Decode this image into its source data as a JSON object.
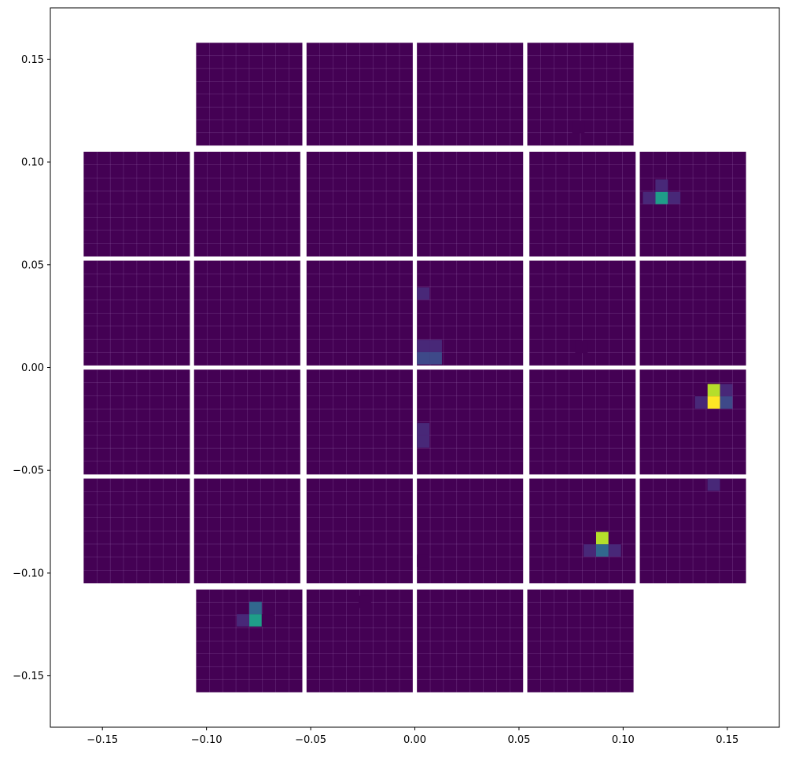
{
  "chart_data": {
    "type": "heatmap",
    "title": "",
    "xlabel": "",
    "ylabel": "",
    "xlim": [
      -0.175,
      0.175
    ],
    "ylim": [
      -0.175,
      0.175
    ],
    "xticks": [
      -0.15,
      -0.1,
      -0.05,
      0.0,
      0.05,
      0.1,
      0.15
    ],
    "xtick_labels": [
      "−0.15",
      "−0.10",
      "−0.05",
      "0.00",
      "0.05",
      "0.10",
      "0.15"
    ],
    "yticks": [
      -0.15,
      -0.1,
      -0.05,
      0.0,
      0.05,
      0.1,
      0.15
    ],
    "ytick_labels": [
      "−0.15",
      "−0.10",
      "−0.05",
      "0.00",
      "0.05",
      "0.10",
      "0.15"
    ],
    "grid": false,
    "colormap": "viridis",
    "value_range": [
      0,
      1
    ],
    "background_color": "#440154",
    "pixel_line_color": "#8a5aa0",
    "modules": [
      {
        "row": 0,
        "col": 1,
        "x0": -0.105,
        "x1": -0.054,
        "y0": 0.108,
        "y1": 0.158
      },
      {
        "row": 0,
        "col": 2,
        "x0": -0.052,
        "x1": -0.001,
        "y0": 0.108,
        "y1": 0.158
      },
      {
        "row": 0,
        "col": 3,
        "x0": 0.001,
        "x1": 0.052,
        "y0": 0.108,
        "y1": 0.158
      },
      {
        "row": 0,
        "col": 4,
        "x0": 0.054,
        "x1": 0.105,
        "y0": 0.108,
        "y1": 0.158
      },
      {
        "row": 1,
        "col": 0,
        "x0": -0.159,
        "x1": -0.108,
        "y0": 0.054,
        "y1": 0.105
      },
      {
        "row": 1,
        "col": 1,
        "x0": -0.106,
        "x1": -0.055,
        "y0": 0.054,
        "y1": 0.105
      },
      {
        "row": 1,
        "col": 2,
        "x0": -0.052,
        "x1": -0.001,
        "y0": 0.054,
        "y1": 0.105
      },
      {
        "row": 1,
        "col": 3,
        "x0": 0.001,
        "x1": 0.052,
        "y0": 0.054,
        "y1": 0.105
      },
      {
        "row": 1,
        "col": 4,
        "x0": 0.055,
        "x1": 0.106,
        "y0": 0.054,
        "y1": 0.105
      },
      {
        "row": 1,
        "col": 5,
        "x0": 0.108,
        "x1": 0.159,
        "y0": 0.054,
        "y1": 0.105
      },
      {
        "row": 2,
        "col": 0,
        "x0": -0.159,
        "x1": -0.108,
        "y0": 0.001,
        "y1": 0.052
      },
      {
        "row": 2,
        "col": 1,
        "x0": -0.106,
        "x1": -0.055,
        "y0": 0.001,
        "y1": 0.052
      },
      {
        "row": 2,
        "col": 2,
        "x0": -0.052,
        "x1": -0.001,
        "y0": 0.001,
        "y1": 0.052
      },
      {
        "row": 2,
        "col": 3,
        "x0": 0.001,
        "x1": 0.052,
        "y0": 0.001,
        "y1": 0.052
      },
      {
        "row": 2,
        "col": 4,
        "x0": 0.055,
        "x1": 0.106,
        "y0": 0.001,
        "y1": 0.052
      },
      {
        "row": 2,
        "col": 5,
        "x0": 0.108,
        "x1": 0.159,
        "y0": 0.001,
        "y1": 0.052
      },
      {
        "row": 3,
        "col": 0,
        "x0": -0.159,
        "x1": -0.108,
        "y0": -0.052,
        "y1": -0.001
      },
      {
        "row": 3,
        "col": 1,
        "x0": -0.106,
        "x1": -0.055,
        "y0": -0.052,
        "y1": -0.001
      },
      {
        "row": 3,
        "col": 2,
        "x0": -0.052,
        "x1": -0.001,
        "y0": -0.052,
        "y1": -0.001
      },
      {
        "row": 3,
        "col": 3,
        "x0": 0.001,
        "x1": 0.052,
        "y0": -0.052,
        "y1": -0.001
      },
      {
        "row": 3,
        "col": 4,
        "x0": 0.055,
        "x1": 0.106,
        "y0": -0.052,
        "y1": -0.001
      },
      {
        "row": 3,
        "col": 5,
        "x0": 0.108,
        "x1": 0.159,
        "y0": -0.052,
        "y1": -0.001
      },
      {
        "row": 4,
        "col": 0,
        "x0": -0.159,
        "x1": -0.108,
        "y0": -0.105,
        "y1": -0.054
      },
      {
        "row": 4,
        "col": 1,
        "x0": -0.106,
        "x1": -0.055,
        "y0": -0.105,
        "y1": -0.054
      },
      {
        "row": 4,
        "col": 2,
        "x0": -0.052,
        "x1": -0.001,
        "y0": -0.105,
        "y1": -0.054
      },
      {
        "row": 4,
        "col": 3,
        "x0": 0.001,
        "x1": 0.052,
        "y0": -0.105,
        "y1": -0.054
      },
      {
        "row": 4,
        "col": 4,
        "x0": 0.055,
        "x1": 0.106,
        "y0": -0.105,
        "y1": -0.054
      },
      {
        "row": 4,
        "col": 5,
        "x0": 0.108,
        "x1": 0.159,
        "y0": -0.105,
        "y1": -0.054
      },
      {
        "row": 5,
        "col": 1,
        "x0": -0.105,
        "x1": -0.054,
        "y0": -0.158,
        "y1": -0.108
      },
      {
        "row": 5,
        "col": 2,
        "x0": -0.052,
        "x1": -0.001,
        "y0": -0.158,
        "y1": -0.108
      },
      {
        "row": 5,
        "col": 3,
        "x0": 0.001,
        "x1": 0.052,
        "y0": -0.158,
        "y1": -0.108
      },
      {
        "row": 5,
        "col": 4,
        "x0": 0.054,
        "x1": 0.105,
        "y0": -0.158,
        "y1": -0.108
      }
    ],
    "pixels_per_module": [
      8,
      8
    ],
    "hot_pixels": [
      {
        "x": 0.1185,
        "y": 0.0825,
        "value": 0.6
      },
      {
        "x": 0.1185,
        "y": 0.0885,
        "value": 0.15
      },
      {
        "x": 0.1125,
        "y": 0.0825,
        "value": 0.1
      },
      {
        "x": 0.1245,
        "y": 0.0825,
        "value": 0.08
      },
      {
        "x": 0.004,
        "y": 0.036,
        "value": 0.15
      },
      {
        "x": 0.004,
        "y": 0.0105,
        "value": 0.12
      },
      {
        "x": 0.01,
        "y": 0.0105,
        "value": 0.1
      },
      {
        "x": 0.004,
        "y": 0.0045,
        "value": 0.22
      },
      {
        "x": 0.01,
        "y": 0.0045,
        "value": 0.2
      },
      {
        "x": 0.0785,
        "y": 0.117,
        "value": 0.05
      },
      {
        "x": 0.08,
        "y": 0.01,
        "value": 0.04
      },
      {
        "x": 0.004,
        "y": -0.03,
        "value": 0.12
      },
      {
        "x": 0.004,
        "y": -0.036,
        "value": 0.06
      },
      {
        "x": 0.1435,
        "y": -0.011,
        "value": 0.85
      },
      {
        "x": 0.1435,
        "y": -0.017,
        "value": 1.0
      },
      {
        "x": 0.1375,
        "y": -0.011,
        "value": 0.05
      },
      {
        "x": 0.1375,
        "y": -0.017,
        "value": 0.08
      },
      {
        "x": 0.1495,
        "y": -0.011,
        "value": 0.1
      },
      {
        "x": 0.1495,
        "y": -0.017,
        "value": 0.18
      },
      {
        "x": 0.1435,
        "y": -0.057,
        "value": 0.1
      },
      {
        "x": 0.09,
        "y": -0.083,
        "value": 0.85
      },
      {
        "x": 0.09,
        "y": -0.089,
        "value": 0.35
      },
      {
        "x": 0.084,
        "y": -0.083,
        "value": 0.04
      },
      {
        "x": 0.096,
        "y": -0.083,
        "value": 0.05
      },
      {
        "x": 0.084,
        "y": -0.089,
        "value": 0.06
      },
      {
        "x": 0.096,
        "y": -0.089,
        "value": 0.06
      },
      {
        "x": -0.0765,
        "y": -0.117,
        "value": 0.3
      },
      {
        "x": -0.0765,
        "y": -0.123,
        "value": 0.55
      },
      {
        "x": -0.0825,
        "y": -0.123,
        "value": 0.12
      },
      {
        "x": -0.0705,
        "y": -0.123,
        "value": 0.05
      },
      {
        "x": -0.024,
        "y": -0.114,
        "value": 0.04
      },
      {
        "x": 0.004,
        "y": -0.094,
        "value": 0.03
      }
    ]
  }
}
